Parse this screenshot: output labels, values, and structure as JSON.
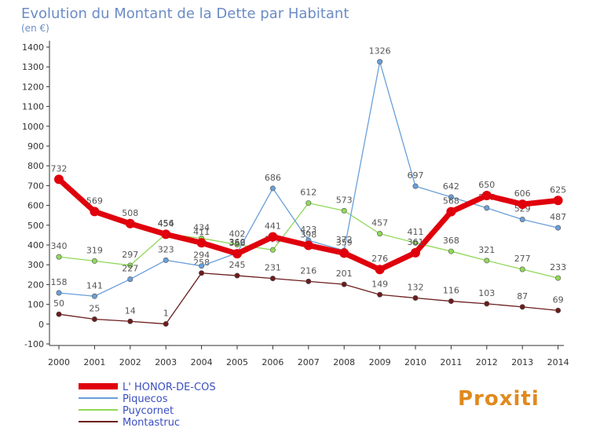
{
  "chart_data": {
    "type": "line",
    "title": "Evolution du Montant de la Dette par Habitant",
    "subtitle": "(en €)",
    "x": [
      "2000",
      "2001",
      "2002",
      "2003",
      "2004",
      "2005",
      "2006",
      "2007",
      "2008",
      "2009",
      "2010",
      "2011",
      "2012",
      "2013",
      "2014"
    ],
    "ylim": [
      -100,
      1400
    ],
    "yticks": [
      -100,
      0,
      100,
      200,
      300,
      400,
      500,
      600,
      700,
      800,
      900,
      1000,
      1100,
      1200,
      1300,
      1400
    ],
    "grid": false,
    "legend_position": "bottom-left",
    "series": [
      {
        "name": "L' HONOR-DE-COS",
        "color": "#e0000c",
        "values": [
          732,
          569,
          508,
          454,
          411,
          356,
          441,
          398,
          359,
          276,
          361,
          568,
          650,
          606,
          625
        ]
      },
      {
        "name": "Piquecos",
        "color": "#6a9fd8",
        "values": [
          158,
          141,
          227,
          323,
          294,
          360,
          686,
          423,
          372,
          1326,
          697,
          642,
          587,
          529,
          487
        ]
      },
      {
        "name": "Puycornet",
        "color": "#90d858",
        "values": [
          340,
          319,
          297,
          456,
          434,
          402,
          375,
          612,
          573,
          457,
          411,
          368,
          321,
          277,
          233
        ]
      },
      {
        "name": "Montastruc",
        "color": "#6b1c1c",
        "values": [
          50,
          25,
          14,
          1,
          258,
          245,
          231,
          216,
          201,
          149,
          132,
          116,
          103,
          87,
          69
        ]
      }
    ]
  },
  "logo": {
    "text": "Proxiti"
  }
}
